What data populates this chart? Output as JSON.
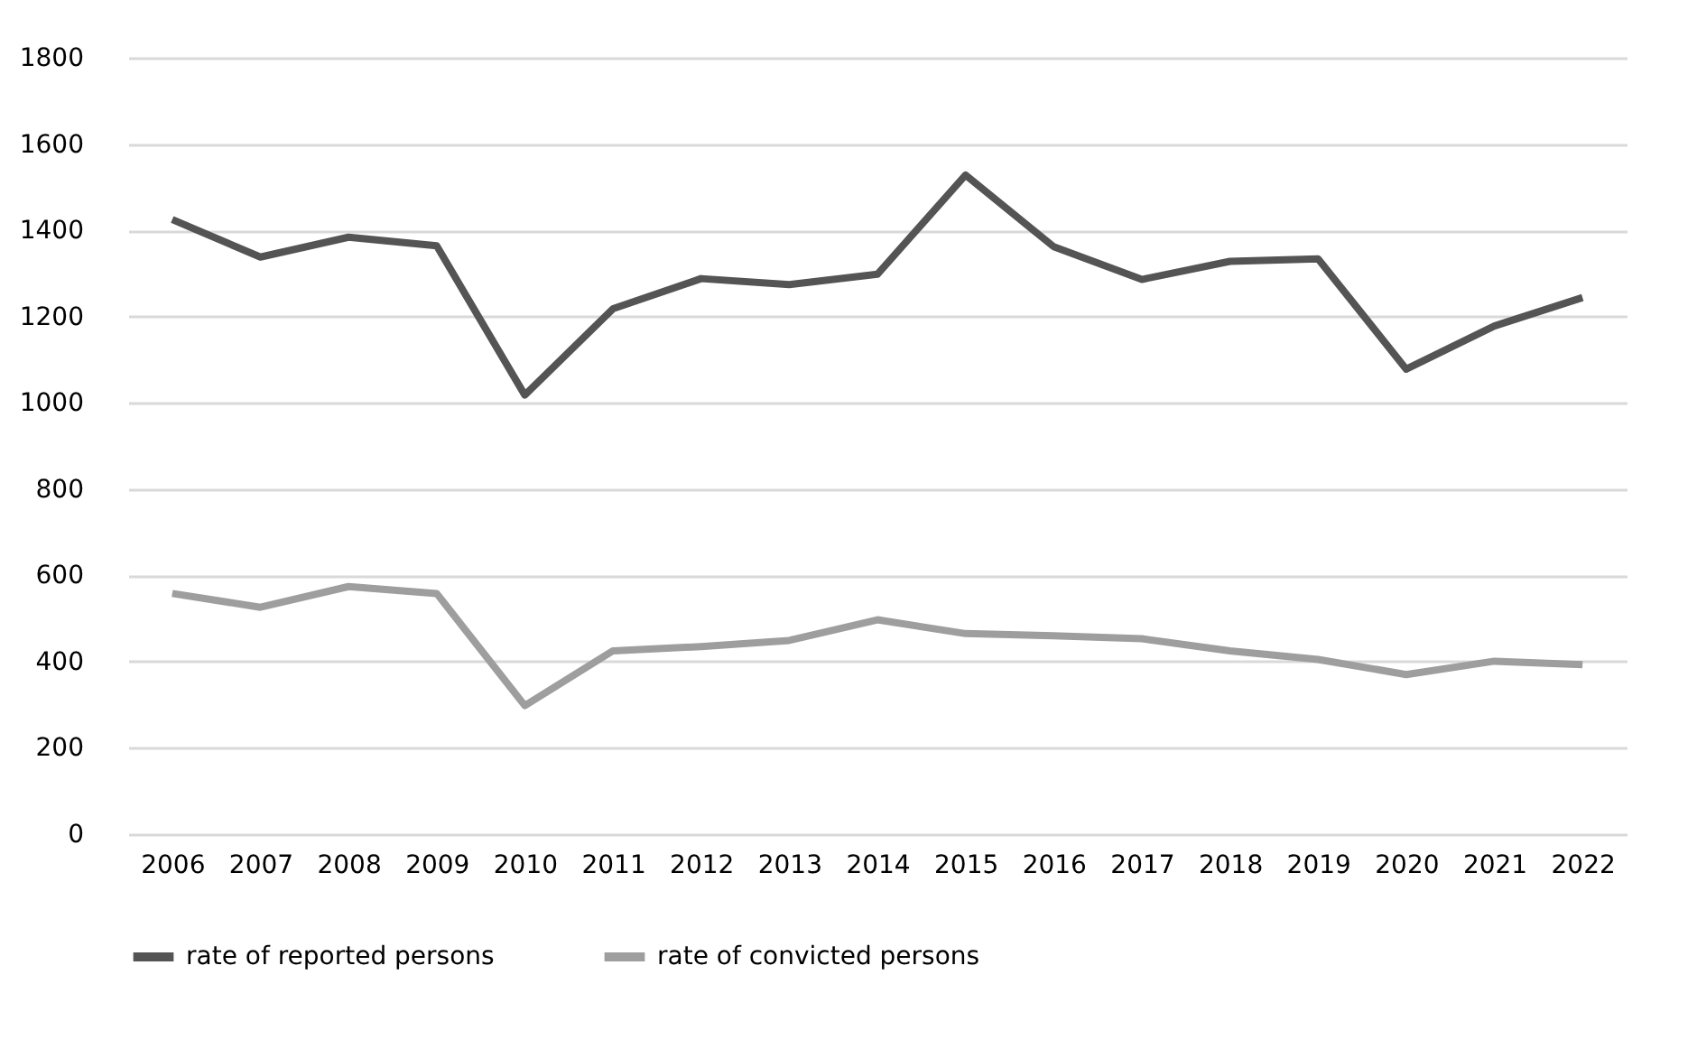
{
  "chart_data": {
    "type": "line",
    "categories": [
      "2006",
      "2007",
      "2008",
      "2009",
      "2010",
      "2011",
      "2012",
      "2013",
      "2014",
      "2015",
      "2016",
      "2017",
      "2018",
      "2019",
      "2020",
      "2021",
      "2022"
    ],
    "series": [
      {
        "name": "rate of reported persons",
        "color": "#545454",
        "values": [
          1425,
          1338,
          1384,
          1364,
          1018,
          1218,
          1288,
          1274,
          1298,
          1528,
          1362,
          1286,
          1328,
          1334,
          1078,
          1178,
          1244
        ]
      },
      {
        "name": "rate of convicted persons",
        "color": "#9e9e9e",
        "values": [
          558,
          526,
          574,
          558,
          298,
          425,
          435,
          449,
          497,
          465,
          460,
          453,
          425,
          405,
          370,
          401,
          393
        ]
      }
    ],
    "ylim": [
      0,
      1800
    ],
    "yticks": [
      0,
      200,
      400,
      600,
      800,
      1000,
      1200,
      1400,
      1600,
      1800
    ],
    "grid": "y",
    "legend": "bottom",
    "marker": "none",
    "line_style": "solid"
  }
}
